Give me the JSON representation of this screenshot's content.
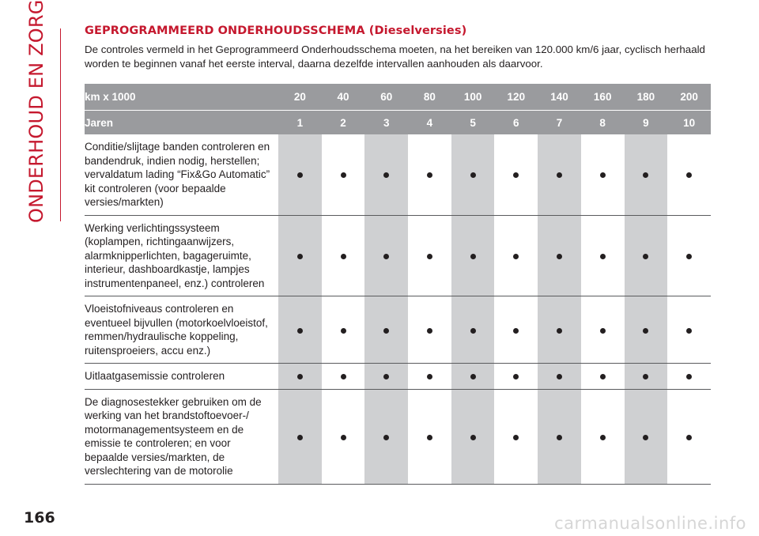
{
  "side_title": "ONDERHOUD EN ZORG",
  "page_number": "166",
  "watermark": "carmanualsonline.info",
  "heading": "GEPROGRAMMEERD ONDERHOUDSSCHEMA (Dieselversies)",
  "intro": "De controles vermeld in het Geprogrammeerd Onderhoudsschema moeten, na het bereiken van 120.000 km/6 jaar, cyclisch herhaald worden te beginnen vanaf het eerste interval, daarna dezelfde intervallen aanhouden als daarvoor.",
  "table": {
    "km_label": "km x 1000",
    "km": [
      "20",
      "40",
      "60",
      "80",
      "100",
      "120",
      "140",
      "160",
      "180",
      "200"
    ],
    "years_label": "Jaren",
    "years": [
      "1",
      "2",
      "3",
      "4",
      "5",
      "6",
      "7",
      "8",
      "9",
      "10"
    ],
    "rows": [
      {
        "task": "Conditie/slijtage banden controleren en bandendruk, indien nodig, herstellen; vervaldatum lading “Fix&Go Automatic” kit controleren (voor bepaalde versies/markten)",
        "marks": [
          true,
          true,
          true,
          true,
          true,
          true,
          true,
          true,
          true,
          true
        ]
      },
      {
        "task": "Werking verlichtingssysteem (koplampen, richtingaanwijzers, alarmknipperlichten, bagageruimte, interieur, dashboardkastje, lampjes instrumentenpaneel, enz.) controleren",
        "marks": [
          true,
          true,
          true,
          true,
          true,
          true,
          true,
          true,
          true,
          true
        ]
      },
      {
        "task": "Vloeistofniveaus controleren en eventueel bijvullen (motorkoelvloeistof, remmen/hydraulische koppeling, ruitensproeiers, accu enz.)",
        "marks": [
          true,
          true,
          true,
          true,
          true,
          true,
          true,
          true,
          true,
          true
        ]
      },
      {
        "task": "Uitlaatgasemissie controleren",
        "marks": [
          true,
          true,
          true,
          true,
          true,
          true,
          true,
          true,
          true,
          true
        ]
      },
      {
        "task": "De diagnosestekker gebruiken om de werking van het brandstoftoevoer-/ motormanagementsysteem en de emissie te controleren; en voor bepaalde versies/markten, de verslechtering van de motorolie",
        "marks": [
          true,
          true,
          true,
          true,
          true,
          true,
          true,
          true,
          true,
          true
        ]
      }
    ]
  },
  "colors": {
    "accent": "#c5182e",
    "header_bg": "#9a9b9e",
    "alt_column": "#cfd0d2"
  }
}
